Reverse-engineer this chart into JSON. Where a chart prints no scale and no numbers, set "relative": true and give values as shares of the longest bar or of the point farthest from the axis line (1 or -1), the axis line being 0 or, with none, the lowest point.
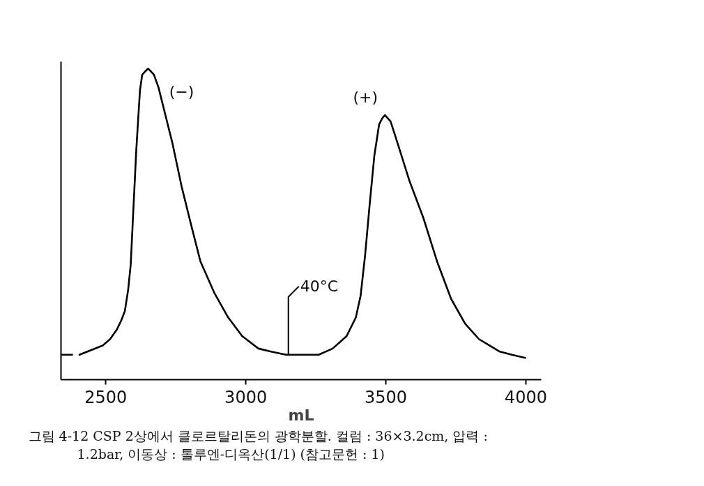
{
  "chart_data": {
    "type": "line",
    "relative": true,
    "xlabel": "mL",
    "xlim": [
      2340,
      4055
    ],
    "xticks": [
      2500,
      3000,
      3500,
      4000
    ],
    "x": [
      2340,
      2380,
      2393,
      2406,
      2489,
      2515,
      2539,
      2555,
      2568,
      2580,
      2589,
      2597,
      2609,
      2622,
      2630,
      2640,
      2651,
      2662,
      2672,
      2688,
      2713,
      2738,
      2771,
      2804,
      2838,
      2887,
      2937,
      2987,
      3045,
      3090,
      3144,
      3152,
      3260,
      3285,
      3310,
      3335,
      3360,
      3393,
      3410,
      3426,
      3443,
      3459,
      3476,
      3487,
      3497,
      3507,
      3517,
      3542,
      3584,
      3634,
      3683,
      3733,
      3783,
      3833,
      3870,
      3907,
      3950,
      3998
    ],
    "series": [
      {
        "color": "#000000",
        "values": [
          0.08,
          0.08,
          null,
          0.08,
          0.11,
          0.13,
          0.16,
          0.19,
          0.22,
          0.29,
          0.37,
          0.52,
          0.74,
          0.93,
          0.98,
          0.99,
          1.0,
          0.99,
          0.98,
          0.94,
          0.85,
          0.76,
          0.62,
          0.5,
          0.38,
          0.28,
          0.2,
          0.14,
          0.1,
          0.09,
          0.08,
          0.08,
          0.08,
          0.09,
          0.1,
          0.12,
          0.14,
          0.2,
          0.27,
          0.4,
          0.57,
          0.72,
          0.82,
          0.84,
          0.85,
          0.84,
          0.83,
          0.76,
          0.64,
          0.52,
          0.38,
          0.26,
          0.18,
          0.13,
          0.11,
          0.09,
          0.08,
          0.07
        ]
      }
    ],
    "annotations": [
      {
        "text": "(−)",
        "x": 2651,
        "y": 1.0
      },
      {
        "text": "(+)",
        "x": 3497,
        "y": 0.85
      },
      {
        "text": "40°C",
        "x": 3152,
        "y": 0.08
      },
      "그림 4-12 CSP 2상에서 클로르탈리돈의 광학분할. 컬럼 : 36×3.2cm, 압력 : 1.2bar, 이동상 : 톨루엔-디옥산(1/1) (참고문헌 : 1)"
    ]
  }
}
